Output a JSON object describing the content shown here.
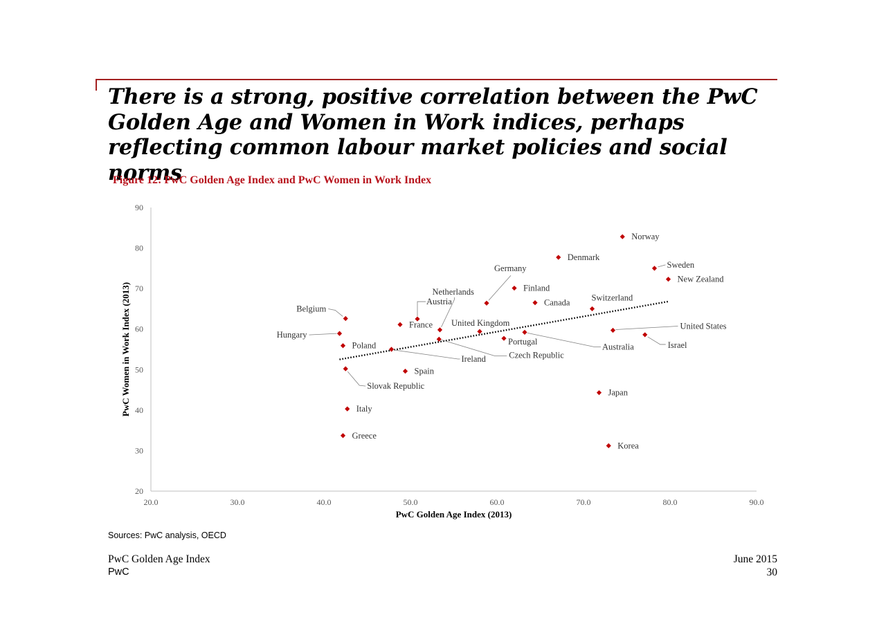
{
  "slide": {
    "headline": "There is a strong, positive correlation between the PwC Golden Age and Women in Work indices, perhaps reflecting common labour market policies and social norms",
    "figure_title": "Figure 12: PwC Golden Age Index and PwC Women in Work Index",
    "sources": "Sources: PwC analysis, OECD"
  },
  "footer": {
    "left_line1": "PwC Golden Age Index",
    "left_line2": "PwC",
    "right_line1": "June 2015",
    "right_line2": "30"
  },
  "colors": {
    "accent": "#a32020",
    "marker": "#c00000",
    "figure_title": "#b8141d"
  },
  "chart_data": {
    "type": "scatter",
    "xlabel": "PwC Golden Age Index (2013)",
    "ylabel": "PwC Women in Work Index (2013)",
    "xlim": [
      20,
      90
    ],
    "ylim": [
      20,
      90
    ],
    "xticks": [
      "20.0",
      "30.0",
      "40.0",
      "50.0",
      "60.0",
      "70.0",
      "80.0",
      "90.0"
    ],
    "yticks": [
      "20",
      "30",
      "40",
      "50",
      "60",
      "70",
      "80",
      "90"
    ],
    "grid": false,
    "trendline": {
      "style": "dotted",
      "x_range": [
        41.8,
        79.8
      ],
      "y_range": [
        52.5,
        66.8
      ]
    },
    "points": [
      {
        "name": "Norway",
        "x": 74.5,
        "y": 82.8
      },
      {
        "name": "Denmark",
        "x": 67.1,
        "y": 77.7
      },
      {
        "name": "Sweden",
        "x": 78.2,
        "y": 75.0
      },
      {
        "name": "New Zealand",
        "x": 79.8,
        "y": 72.3
      },
      {
        "name": "Germany",
        "x": 58.8,
        "y": 66.4
      },
      {
        "name": "Finland",
        "x": 62.0,
        "y": 70.1
      },
      {
        "name": "Canada",
        "x": 64.4,
        "y": 66.5
      },
      {
        "name": "Switzerland",
        "x": 71.0,
        "y": 65.0
      },
      {
        "name": "Netherlands",
        "x": 53.4,
        "y": 59.8
      },
      {
        "name": "Austria",
        "x": 50.8,
        "y": 62.5
      },
      {
        "name": "Belgium",
        "x": 42.5,
        "y": 62.6
      },
      {
        "name": "France",
        "x": 48.8,
        "y": 61.1
      },
      {
        "name": "United Kingdom",
        "x": 58.0,
        "y": 59.4
      },
      {
        "name": "United States",
        "x": 73.4,
        "y": 59.7
      },
      {
        "name": "Hungary",
        "x": 41.8,
        "y": 58.9
      },
      {
        "name": "Portugal",
        "x": 60.8,
        "y": 57.7
      },
      {
        "name": "Australia",
        "x": 63.2,
        "y": 59.2
      },
      {
        "name": "Israel",
        "x": 77.1,
        "y": 58.6
      },
      {
        "name": "Poland",
        "x": 42.2,
        "y": 55.9
      },
      {
        "name": "Ireland",
        "x": 47.8,
        "y": 55.0
      },
      {
        "name": "Czech Republic",
        "x": 53.3,
        "y": 57.5
      },
      {
        "name": "Spain",
        "x": 49.4,
        "y": 49.6
      },
      {
        "name": "Slovak Republic",
        "x": 42.5,
        "y": 50.2
      },
      {
        "name": "Japan",
        "x": 71.8,
        "y": 44.3
      },
      {
        "name": "Italy",
        "x": 42.7,
        "y": 40.3
      },
      {
        "name": "Greece",
        "x": 42.2,
        "y": 33.7
      },
      {
        "name": "Korea",
        "x": 72.9,
        "y": 31.2
      }
    ]
  }
}
